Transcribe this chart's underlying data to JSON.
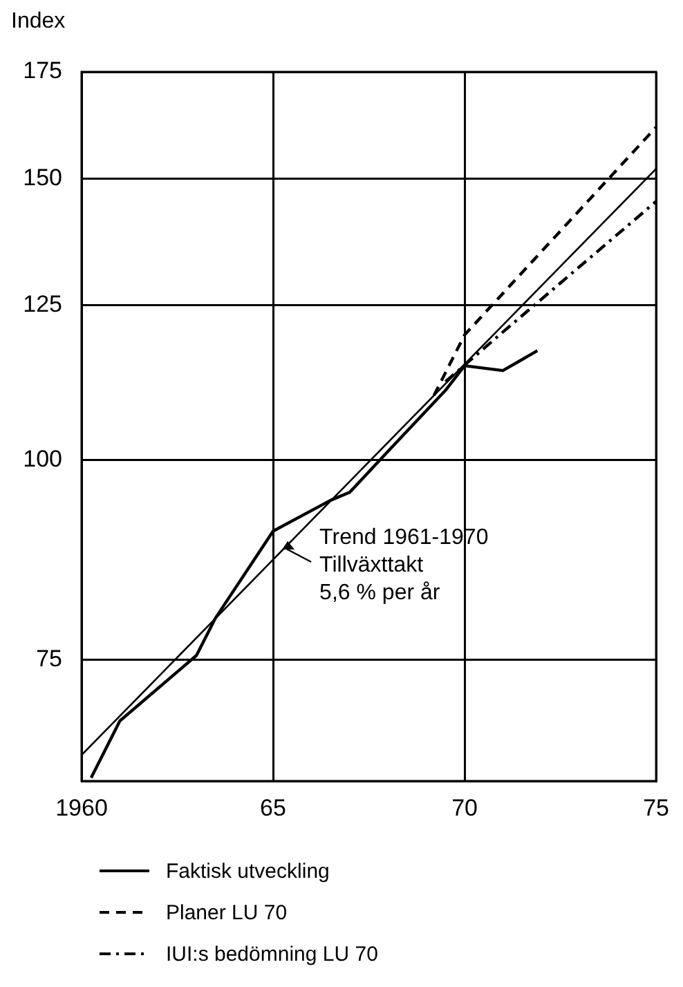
{
  "chart_data": {
    "type": "line",
    "ylabel": "Index",
    "log": "y",
    "grid": true,
    "legend": "bottom",
    "marker": "none",
    "xlim": [
      1960,
      1975
    ],
    "xticks": [
      1960,
      {
        "value": 1965,
        "label": "65"
      },
      {
        "value": 1970,
        "label": "70"
      },
      {
        "value": 1975,
        "label": "75"
      }
    ],
    "ylim": [
      63,
      175
    ],
    "yticks": [
      75,
      100,
      125,
      150,
      175
    ],
    "series": [
      {
        "name": "Faktisk utveckling",
        "color": "#000000",
        "line_style": "solid",
        "x": [
          1960.25,
          1961,
          1963,
          1963.5,
          1965,
          1966.5,
          1967,
          1968,
          1969.5,
          1970,
          1971,
          1971.9
        ],
        "values": [
          63.3,
          68.7,
          75.5,
          79.7,
          90.3,
          94.4,
          95.5,
          101.3,
          110.6,
          114.6,
          113.8,
          117.1
        ]
      },
      {
        "name": "Planer LU 70",
        "color": "#000000",
        "line_style": "dashed",
        "x": [
          1969.2,
          1970,
          1975
        ],
        "values": [
          109.8,
          119.8,
          161.6
        ]
      },
      {
        "name": "IUI:s bedömning LU 70",
        "color": "#000000",
        "line_style": "dashdot",
        "x": [
          1969.5,
          1971,
          1975
        ],
        "values": [
          112,
          120.3,
          145.2
        ]
      },
      {
        "type": "line",
        "color": "#000000",
        "line_style": "solid",
        "x": [
          1960,
          1975
        ],
        "values": [
          65.4,
          152.2
        ]
      }
    ],
    "annotations": [
      {
        "text": "Trend 1961-1970\nTillväxttakt\n5,6 % per år",
        "x": 1965.2,
        "y": 87.6
      }
    ]
  }
}
